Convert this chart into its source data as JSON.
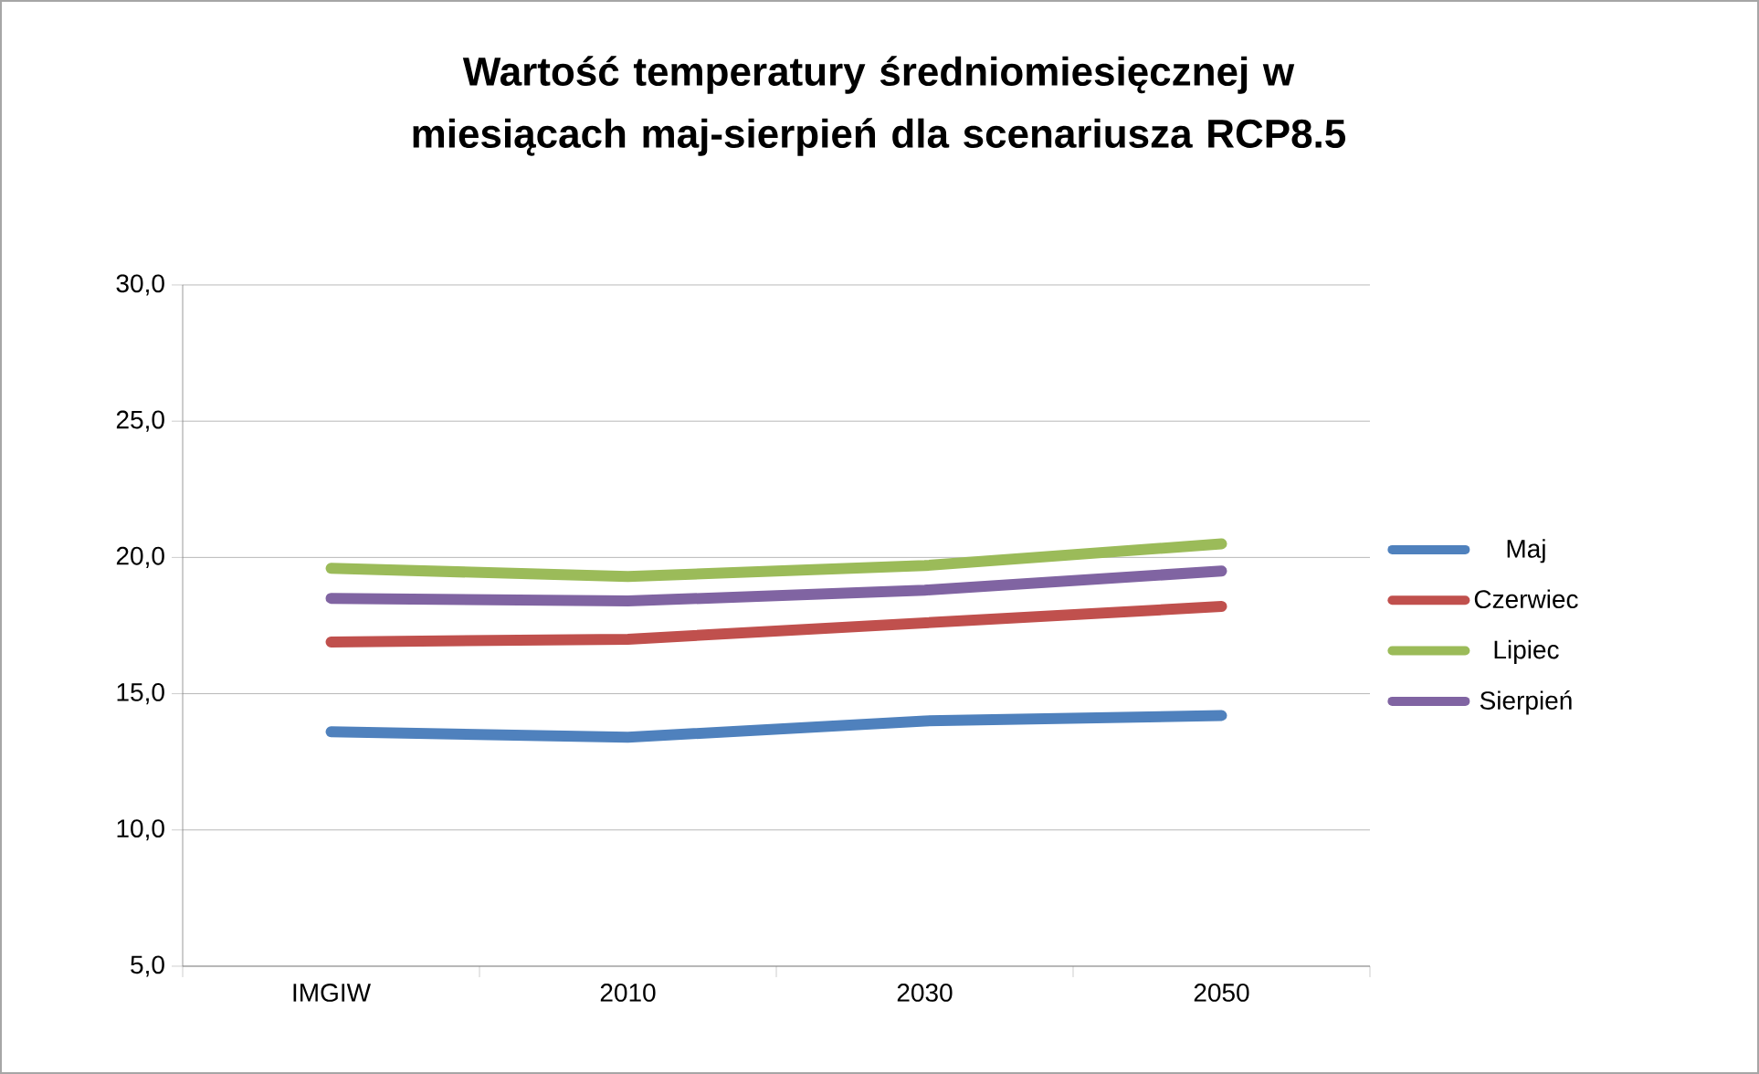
{
  "chart_data": {
    "type": "line",
    "title": "Wartość temperatury średniomiesięcznej w miesiącach maj-sierpień dla scenariusza RCP8.5",
    "categories": [
      "IMGIW",
      "2010",
      "2030",
      "2050"
    ],
    "series": [
      {
        "name": "Maj",
        "color": "#4f81bd",
        "values": [
          13.6,
          13.4,
          14.0,
          14.2
        ]
      },
      {
        "name": "Czerwiec",
        "color": "#c0504d",
        "values": [
          16.9,
          17.0,
          17.6,
          18.2
        ]
      },
      {
        "name": "Lipiec",
        "color": "#9bbb59",
        "values": [
          19.6,
          19.3,
          19.7,
          20.5
        ]
      },
      {
        "name": "Sierpień",
        "color": "#8064a2",
        "values": [
          18.5,
          18.4,
          18.8,
          19.5
        ]
      }
    ],
    "ylim": [
      5,
      30
    ],
    "yticks": [
      {
        "value": 5,
        "label": "5,0"
      },
      {
        "value": 10,
        "label": "10,0"
      },
      {
        "value": 15,
        "label": "15,0"
      },
      {
        "value": 20,
        "label": "20,0"
      },
      {
        "value": 25,
        "label": "25,0"
      },
      {
        "value": 30,
        "label": "30,0"
      }
    ],
    "grid": "y",
    "legend": "right",
    "marker": "none",
    "line_style": "solid"
  }
}
